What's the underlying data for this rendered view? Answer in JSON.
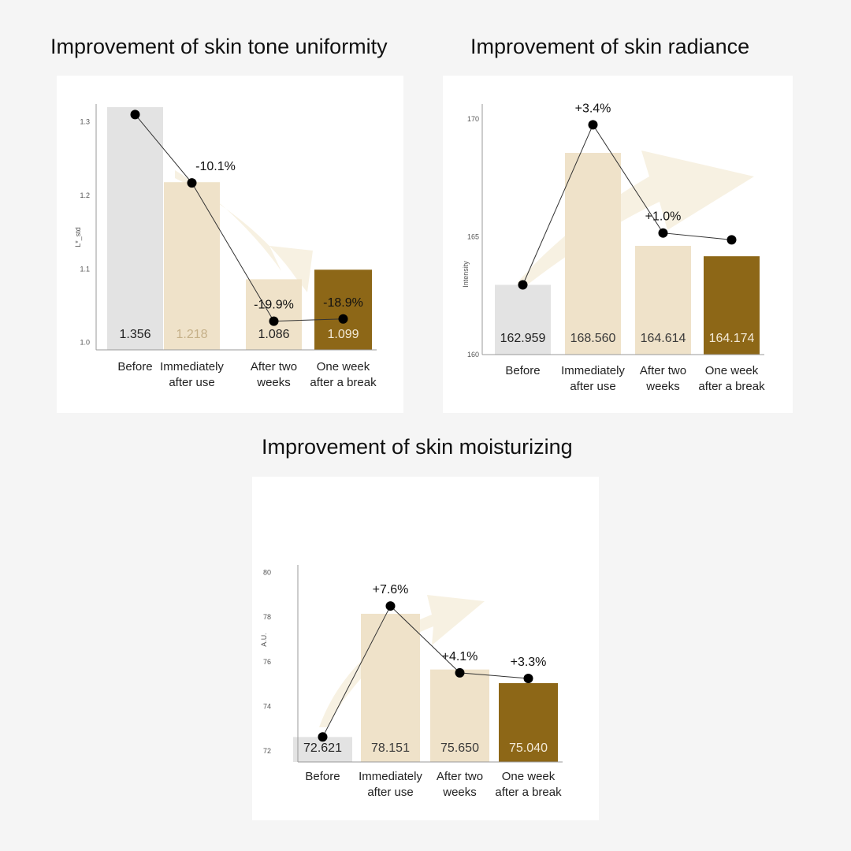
{
  "charts": [
    {
      "title": "Improvement of skin tone uniformity",
      "chart_data": {
        "type": "bar",
        "ylabel": "L*_std",
        "ylim": [
          0.99,
          1.32
        ],
        "yticks": [
          "1.0",
          "1.1",
          "1.2",
          "1.3"
        ],
        "categories": [
          "Before",
          "Immediately after use",
          "After two weeks",
          "One week after a break"
        ],
        "category_lines": [
          [
            "Before"
          ],
          [
            "Immediately",
            "after use"
          ],
          [
            "After two",
            "weeks"
          ],
          [
            "One week",
            "after a break"
          ]
        ],
        "values": [
          1.356,
          1.218,
          1.086,
          1.099
        ],
        "value_labels": [
          "1.356",
          "1.218",
          "1.086",
          "1.099"
        ],
        "changes": [
          "",
          "-10.1%",
          "-19.9%",
          "-18.9%"
        ],
        "line_points": [
          1.31,
          1.217,
          1.029,
          1.032
        ],
        "bar_colors": [
          "#e3e3e3",
          "#efe2c9",
          "#efe2c9",
          "#8d6717"
        ],
        "label_colors": [
          "#222222",
          "#c5b088",
          "#222222",
          "#f3ead8"
        ]
      }
    },
    {
      "title": "Improvement of skin radiance",
      "chart_data": {
        "type": "bar",
        "ylabel": "Intensity",
        "ylim": [
          160,
          170.5
        ],
        "yticks": [
          "160",
          "165",
          "170"
        ],
        "categories": [
          "Before",
          "Immediately after use",
          "After two weeks",
          "One week after a break"
        ],
        "category_lines": [
          [
            "Before"
          ],
          [
            "Immediately",
            "after use"
          ],
          [
            "After two",
            "weeks"
          ],
          [
            "One week",
            "after a break"
          ]
        ],
        "values": [
          162.959,
          168.56,
          164.614,
          164.174
        ],
        "value_labels": [
          "162.959",
          "168.560",
          "164.614",
          "164.174"
        ],
        "changes": [
          "",
          "+3.4%",
          "+1.0%",
          ""
        ],
        "line_points": [
          162.959,
          169.75,
          165.16,
          164.87
        ],
        "bar_colors": [
          "#e3e3e3",
          "#efe2c9",
          "#efe2c9",
          "#8d6717"
        ],
        "label_colors": [
          "#222222",
          "#3a3a3a",
          "#3a3a3a",
          "#f3ead8"
        ]
      }
    },
    {
      "title": "Improvement of skin moisturizing",
      "chart_data": {
        "type": "bar",
        "ylabel": "A.U.",
        "ylim": [
          71.5,
          80.2
        ],
        "yticks": [
          "72",
          "74",
          "76",
          "78",
          "80"
        ],
        "categories": [
          "Before",
          "Immediately after use",
          "After two weeks",
          "One week after a break"
        ],
        "category_lines": [
          [
            "Before"
          ],
          [
            "Immediately",
            "after use"
          ],
          [
            "After two",
            "weeks"
          ],
          [
            "One week",
            "after a break"
          ]
        ],
        "values": [
          72.621,
          78.151,
          75.65,
          75.04
        ],
        "value_labels": [
          "72.621",
          "78.151",
          "75.650",
          "75.040"
        ],
        "changes": [
          "",
          "+7.6%",
          "+4.1%",
          "+3.3%"
        ],
        "line_points": [
          72.621,
          78.5,
          75.5,
          75.25
        ],
        "bar_colors": [
          "#e3e3e3",
          "#efe2c9",
          "#efe2c9",
          "#8d6717"
        ],
        "label_colors": [
          "#222222",
          "#3a3a3a",
          "#3a3a3a",
          "#f3ead8"
        ]
      }
    }
  ]
}
